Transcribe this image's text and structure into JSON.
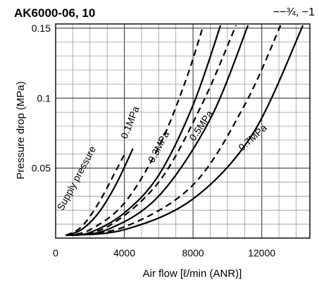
{
  "chart_data": {
    "type": "line",
    "title": "AK6000-06, 10",
    "subtitle": "−−¾, −1",
    "xlabel": "Air flow [ℓ/min (ANR)]",
    "ylabel": "Pressure drop (MPa)",
    "xlim": [
      0,
      14800
    ],
    "ylim": [
      0,
      0.153
    ],
    "x_ticks": [
      0,
      4000,
      8000,
      12000
    ],
    "x_tick_labels": [
      "0",
      "4000",
      "8000",
      "12000"
    ],
    "y_ticks": [
      0.05,
      0.1,
      0.15
    ],
    "y_tick_labels": [
      "0.05",
      "0.1",
      "0.15"
    ],
    "grid": true,
    "annotations": [
      "Supply pressure",
      "0.1MPa",
      "0.3MPa",
      "0.5MPa",
      "0.7MPa"
    ],
    "series": [
      {
        "name": "0.1MPa",
        "style": "solid",
        "x": [
          600,
          1500,
          2500,
          3500,
          4500
        ],
        "y": [
          0.002,
          0.006,
          0.018,
          0.038,
          0.064
        ]
      },
      {
        "name": "0.1MPa",
        "style": "dashed",
        "x": [
          600,
          1500,
          2500,
          3500,
          4100
        ],
        "y": [
          0.002,
          0.008,
          0.025,
          0.048,
          0.062
        ]
      },
      {
        "name": "0.3MPa",
        "style": "solid",
        "x": [
          600,
          2000,
          4000,
          6000,
          8000,
          9600
        ],
        "y": [
          0.002,
          0.004,
          0.018,
          0.045,
          0.095,
          0.152
        ]
      },
      {
        "name": "0.3MPa",
        "style": "dashed",
        "x": [
          600,
          2000,
          4000,
          6000,
          7500,
          8600
        ],
        "y": [
          0.002,
          0.006,
          0.025,
          0.065,
          0.11,
          0.152
        ]
      },
      {
        "name": "0.5MPa",
        "style": "solid",
        "x": [
          600,
          3000,
          6000,
          9000,
          11200
        ],
        "y": [
          0.002,
          0.006,
          0.03,
          0.085,
          0.152
        ]
      },
      {
        "name": "0.5MPa",
        "style": "dashed",
        "x": [
          600,
          3000,
          6000,
          8500,
          10500
        ],
        "y": [
          0.002,
          0.008,
          0.04,
          0.095,
          0.152
        ]
      },
      {
        "name": "0.7MPa",
        "style": "solid",
        "x": [
          600,
          4000,
          8000,
          11500,
          14400
        ],
        "y": [
          0.002,
          0.006,
          0.028,
          0.075,
          0.152
        ]
      },
      {
        "name": "0.7MPa",
        "style": "dashed",
        "x": [
          600,
          4000,
          8000,
          11000,
          13100
        ],
        "y": [
          0.002,
          0.008,
          0.038,
          0.095,
          0.152
        ]
      }
    ]
  }
}
